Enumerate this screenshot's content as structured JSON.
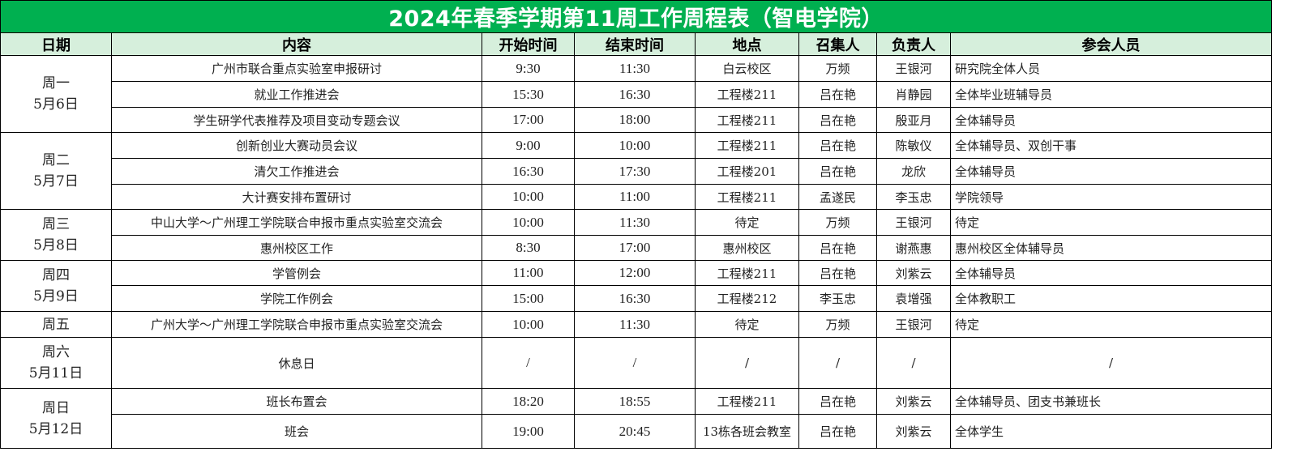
{
  "title": "2024年春季学期第11周工作周程表（智电学院）",
  "headers": [
    "日期",
    "内容",
    "开始时间",
    "结束时间",
    "地点",
    "召集人",
    "负责人",
    "参会人员"
  ],
  "days": [
    {
      "weekday": "周一",
      "date": "5月6日",
      "events": [
        {
          "content": "广州市联合重点实验室申报研讨",
          "start": "9:30",
          "end": "11:30",
          "location": "白云校区",
          "convener": "万频",
          "owner": "王银河",
          "attendees": "研究院全体人员"
        },
        {
          "content": "就业工作推进会",
          "start": "15:30",
          "end": "16:30",
          "location": "工程楼211",
          "convener": "吕在艳",
          "owner": "肖静园",
          "attendees": "全体毕业班辅导员"
        },
        {
          "content": "学生研学代表推荐及项目变动专题会议",
          "start": "17:00",
          "end": "18:00",
          "location": "工程楼211",
          "convener": "吕在艳",
          "owner": "殷亚月",
          "attendees": "全体辅导员"
        }
      ]
    },
    {
      "weekday": "周二",
      "date": "5月7日",
      "events": [
        {
          "content": "创新创业大赛动员会议",
          "start": "9:00",
          "end": "10:00",
          "location": "工程楼211",
          "convener": "吕在艳",
          "owner": "陈敏仪",
          "attendees": "全体辅导员、双创干事"
        },
        {
          "content": "清欠工作推进会",
          "start": "16:30",
          "end": "17:30",
          "location": "工程楼201",
          "convener": "吕在艳",
          "owner": "龙欣",
          "attendees": "全体辅导员"
        },
        {
          "content": "大计赛安排布置研讨",
          "start": "10:00",
          "end": "11:00",
          "location": "工程楼211",
          "convener": "孟遂民",
          "owner": "李玉忠",
          "attendees": "学院领导"
        }
      ]
    },
    {
      "weekday": "周三",
      "date": "5月8日",
      "events": [
        {
          "content": "中山大学～广州理工学院联合申报市重点实验室交流会",
          "start": "10:00",
          "end": "11:30",
          "location": "待定",
          "convener": "万频",
          "owner": "王银河",
          "attendees": "待定"
        },
        {
          "content": "惠州校区工作",
          "start": "8:30",
          "end": "17:00",
          "location": "惠州校区",
          "convener": "吕在艳",
          "owner": "谢燕惠",
          "attendees": "惠州校区全体辅导员"
        }
      ]
    },
    {
      "weekday": "周四",
      "date": "5月9日",
      "events": [
        {
          "content": "学管例会",
          "start": "11:00",
          "end": "12:00",
          "location": "工程楼211",
          "convener": "吕在艳",
          "owner": "刘紫云",
          "attendees": "全体辅导员"
        },
        {
          "content": "学院工作例会",
          "start": "15:00",
          "end": "16:30",
          "location": "工程楼212",
          "convener": "李玉忠",
          "owner": "袁增强",
          "attendees": "全体教职工"
        }
      ]
    },
    {
      "weekday": "周五",
      "date": "",
      "events": [
        {
          "content": "广州大学～广州理工学院联合申报市重点实验室交流会",
          "start": "10:00",
          "end": "11:30",
          "location": "待定",
          "convener": "万频",
          "owner": "王银河",
          "attendees": "待定"
        }
      ]
    },
    {
      "weekday": "周六",
      "date": "5月11日",
      "events": [
        {
          "content": "休息日",
          "start": "/",
          "end": "/",
          "location": "/",
          "convener": "/",
          "owner": "/",
          "attendees": "/"
        }
      ]
    },
    {
      "weekday": "周日",
      "date": "5月12日",
      "events": [
        {
          "content": "班长布置会",
          "start": "18:20",
          "end": "18:55",
          "location": "工程楼211",
          "convener": "吕在艳",
          "owner": "刘紫云",
          "attendees": "全体辅导员、团支书兼班长"
        },
        {
          "content": "班会",
          "start": "19:00",
          "end": "20:45",
          "location": "13栋各班会教室",
          "convener": "吕在艳",
          "owner": "刘紫云",
          "attendees": "全体学生"
        }
      ]
    }
  ]
}
